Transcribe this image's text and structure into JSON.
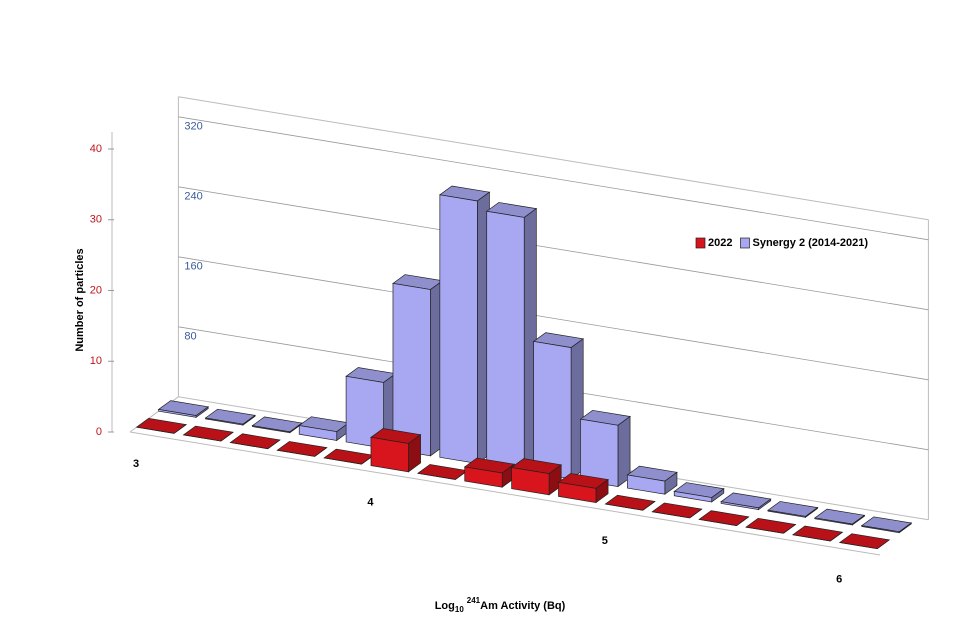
{
  "chart_data": {
    "type": "bar3d",
    "y_label": "Number of particles",
    "x_label": {
      "text_1": "Log",
      "subscript": "10",
      "superscript": "241",
      "text_2": "Am Activity (Bq)"
    },
    "categories": [
      "3",
      null,
      null,
      null,
      null,
      "4",
      null,
      null,
      null,
      null,
      "5",
      null,
      null,
      null,
      null,
      "6"
    ],
    "series": [
      {
        "name": "2022",
        "color": "#d8141c",
        "axis": "y",
        "values": [
          0,
          0,
          0,
          0,
          0,
          4,
          0,
          2,
          3,
          2,
          0,
          0,
          0,
          0,
          0,
          0
        ]
      },
      {
        "name": "Synergy 2 (2014-2021)",
        "color": "#a8a8f2",
        "axis": "y2",
        "values": [
          2,
          1,
          1,
          10,
          75,
          190,
          300,
          290,
          150,
          70,
          15,
          5,
          2,
          1,
          1,
          1
        ]
      }
    ],
    "ylim": [
      0,
      40
    ],
    "yticks": [
      0,
      10,
      20,
      30,
      40
    ],
    "y2lim": [
      0,
      320
    ],
    "y2ticks": [
      80,
      160,
      240,
      320
    ],
    "grid": true,
    "legend": "upper right"
  }
}
